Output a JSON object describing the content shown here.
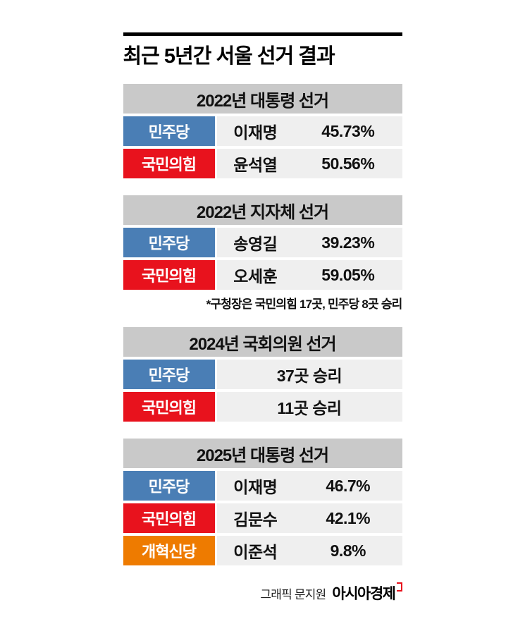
{
  "chart_data": {
    "type": "table",
    "title": "최근 5년간 서울 선거 결과",
    "tables": [
      {
        "header": "2022년 대통령 선거",
        "rows": [
          {
            "party": "민주당",
            "name": "이재명",
            "value": "45.73%",
            "percent": 45.73,
            "color": "#4a7eb5"
          },
          {
            "party": "국민의힘",
            "name": "윤석열",
            "value": "50.56%",
            "percent": 50.56,
            "color": "#e8121d"
          }
        ]
      },
      {
        "header": "2022년 지자체 선거",
        "rows": [
          {
            "party": "민주당",
            "name": "송영길",
            "value": "39.23%",
            "percent": 39.23,
            "color": "#4a7eb5"
          },
          {
            "party": "국민의힘",
            "name": "오세훈",
            "value": "59.05%",
            "percent": 59.05,
            "color": "#e8121d"
          }
        ],
        "footnote": "*구청장은 국민의힘 17곳, 민주당 8곳 승리"
      },
      {
        "header": "2024년 국회의원 선거",
        "rows": [
          {
            "party": "민주당",
            "value": "37곳 승리",
            "districts_won": 37,
            "color": "#4a7eb5"
          },
          {
            "party": "국민의힘",
            "value": "11곳 승리",
            "districts_won": 11,
            "color": "#e8121d"
          }
        ]
      },
      {
        "header": "2025년 대통령 선거",
        "rows": [
          {
            "party": "민주당",
            "name": "이재명",
            "value": "46.7%",
            "percent": 46.7,
            "color": "#4a7eb5"
          },
          {
            "party": "국민의힘",
            "name": "김문수",
            "value": "42.1%",
            "percent": 42.1,
            "color": "#e8121d"
          },
          {
            "party": "개혁신당",
            "name": "이준석",
            "value": "9.8%",
            "percent": 9.8,
            "color": "#ee7b00"
          }
        ]
      }
    ]
  },
  "footer": {
    "credit": "그래픽 문지원",
    "brand": "아시아경제"
  },
  "colors": {
    "democratic_blue": "#4a7eb5",
    "ppp_red": "#e8121d",
    "reform_orange": "#ee7b00",
    "header_gray": "#c9c9c9",
    "row_gray": "#efefef",
    "rule_black": "#000000"
  }
}
